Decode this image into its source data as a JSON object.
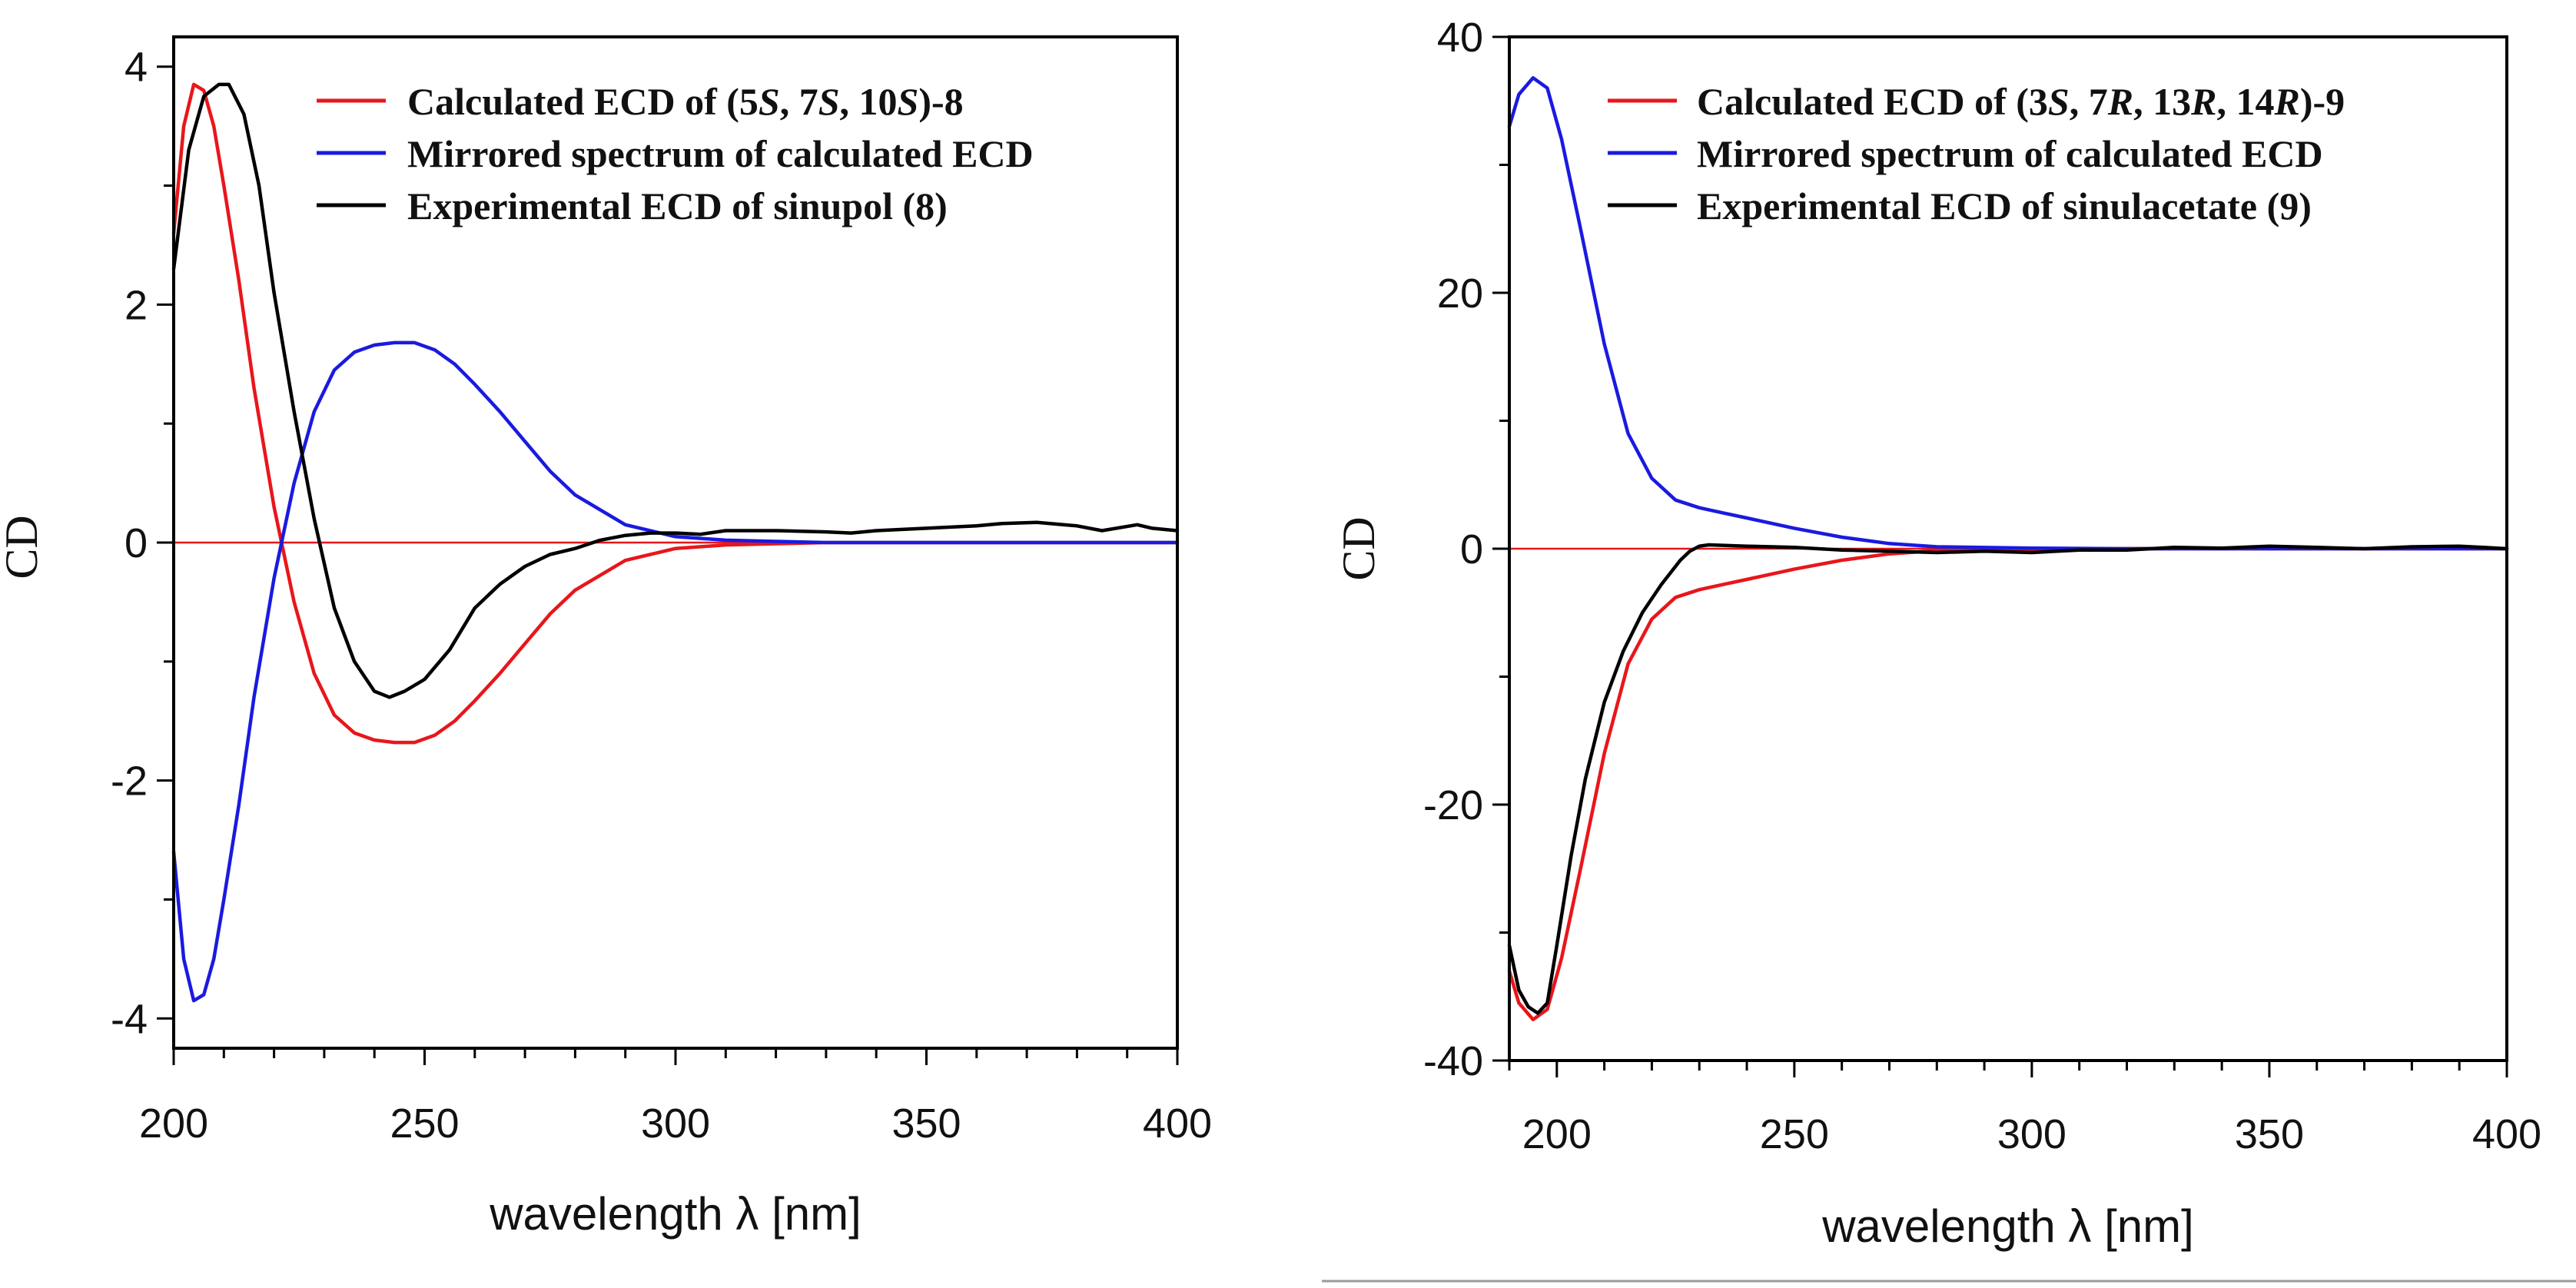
{
  "colors": {
    "calculated": "#e8161b",
    "mirrored": "#1a1ae0",
    "experimental": "#000000",
    "zero_line": "#e8161b"
  },
  "chart_data": [
    {
      "type": "line",
      "xlabel": "wavelength λ [nm]",
      "ylabel": "CD",
      "xlim": [
        200,
        400
      ],
      "ylim": [
        -4.25,
        4.25
      ],
      "xticks": [
        200,
        250,
        300,
        350,
        400
      ],
      "xtick_labels": [
        "200",
        "250",
        "300",
        "350",
        "400"
      ],
      "yticks": [
        -4,
        -2,
        0,
        2,
        4
      ],
      "ytick_labels": [
        "-4",
        "-2",
        "0",
        "2",
        "4"
      ],
      "legend_placement": "top-right",
      "series": [
        {
          "name": "Calculated ECD of (5S, 7S, 10S)-8",
          "legend": {
            "prefix": "Calculated ECD of  (5",
            "parts": [
              [
                "S",
                true
              ],
              [
                ",  7",
                false
              ],
              [
                "S",
                true
              ],
              [
                ",  10",
                false
              ],
              [
                "S",
                true
              ],
              [
                ")-8",
                false
              ]
            ]
          },
          "color": "calculated",
          "x": [
            200,
            202,
            204,
            206,
            208,
            210,
            213,
            216,
            220,
            224,
            228,
            232,
            236,
            240,
            244,
            248,
            252,
            256,
            260,
            265,
            270,
            275,
            280,
            290,
            300,
            310,
            320,
            330,
            340,
            400
          ],
          "y": [
            2.6,
            3.5,
            3.85,
            3.8,
            3.5,
            3.0,
            2.2,
            1.3,
            0.3,
            -0.5,
            -1.1,
            -1.45,
            -1.6,
            -1.66,
            -1.68,
            -1.68,
            -1.62,
            -1.5,
            -1.33,
            -1.1,
            -0.85,
            -0.6,
            -0.4,
            -0.15,
            -0.05,
            -0.02,
            -0.01,
            0,
            0,
            0
          ]
        },
        {
          "name": "Mirrored spectrum of calculated ECD",
          "legend": {
            "prefix": "Mirrored spectrum of calculated ECD",
            "parts": []
          },
          "color": "mirrored",
          "x": [
            200,
            202,
            204,
            206,
            208,
            210,
            213,
            216,
            220,
            224,
            228,
            232,
            236,
            240,
            244,
            248,
            252,
            256,
            260,
            265,
            270,
            275,
            280,
            290,
            300,
            310,
            320,
            330,
            340,
            400
          ],
          "y": [
            -2.6,
            -3.5,
            -3.85,
            -3.8,
            -3.5,
            -3.0,
            -2.2,
            -1.3,
            -0.3,
            0.5,
            1.1,
            1.45,
            1.6,
            1.66,
            1.68,
            1.68,
            1.62,
            1.5,
            1.33,
            1.1,
            0.85,
            0.6,
            0.4,
            0.15,
            0.05,
            0.02,
            0.01,
            0,
            0,
            0
          ]
        },
        {
          "name": "Experimental ECD of sinupol (8)",
          "legend": {
            "prefix": "Experimental ECD of sinupol (8)",
            "parts": []
          },
          "color": "experimental",
          "x": [
            200,
            203,
            206,
            209,
            211,
            214,
            217,
            220,
            224,
            228,
            232,
            236,
            240,
            243,
            246,
            250,
            255,
            260,
            265,
            270,
            275,
            280,
            285,
            290,
            295,
            300,
            305,
            310,
            320,
            330,
            335,
            340,
            350,
            360,
            365,
            372,
            380,
            385,
            392,
            395,
            400
          ],
          "y": [
            2.3,
            3.3,
            3.75,
            3.85,
            3.85,
            3.6,
            3.0,
            2.1,
            1.1,
            0.2,
            -0.55,
            -1.0,
            -1.25,
            -1.3,
            -1.25,
            -1.15,
            -0.9,
            -0.55,
            -0.35,
            -0.2,
            -0.1,
            -0.05,
            0.02,
            0.06,
            0.08,
            0.08,
            0.07,
            0.1,
            0.1,
            0.09,
            0.08,
            0.1,
            0.12,
            0.14,
            0.16,
            0.17,
            0.14,
            0.1,
            0.15,
            0.12,
            0.1
          ]
        }
      ]
    },
    {
      "type": "line",
      "xlabel": "wavelength λ [nm]",
      "ylabel": "CD",
      "xlim": [
        190,
        400
      ],
      "ylim": [
        -40,
        40
      ],
      "xticks": [
        200,
        250,
        300,
        350,
        400
      ],
      "xtick_labels": [
        "200",
        "250",
        "300",
        "350",
        "400"
      ],
      "yticks": [
        -40,
        -20,
        0,
        20,
        40
      ],
      "ytick_labels": [
        "-40",
        "-20",
        "0",
        "20",
        "40"
      ],
      "legend_placement": "top-right",
      "series": [
        {
          "name": "Calculated ECD of (3S, 7R, 13R, 14R)-9",
          "legend": {
            "prefix": "Calculated ECD of  (3",
            "parts": [
              [
                "S",
                true
              ],
              [
                ",  7",
                false
              ],
              [
                "R",
                true
              ],
              [
                ",  13",
                false
              ],
              [
                "R",
                true
              ],
              [
                ",  14",
                false
              ],
              [
                "R",
                true
              ],
              [
                ")-9",
                false
              ]
            ]
          },
          "color": "calculated",
          "x": [
            190,
            192,
            195,
            198,
            201,
            205,
            210,
            215,
            220,
            225,
            230,
            235,
            240,
            250,
            260,
            270,
            280,
            300,
            320,
            400
          ],
          "y": [
            -33,
            -35.5,
            -36.8,
            -36,
            -32,
            -25,
            -16,
            -9,
            -5.5,
            -3.8,
            -3.2,
            -2.8,
            -2.4,
            -1.6,
            -0.9,
            -0.4,
            -0.15,
            -0.05,
            0,
            0
          ]
        },
        {
          "name": "Mirrored spectrum of calculated ECD",
          "legend": {
            "prefix": "Mirrored spectrum of calculated ECD",
            "parts": []
          },
          "color": "mirrored",
          "x": [
            190,
            192,
            195,
            198,
            201,
            205,
            210,
            215,
            220,
            225,
            230,
            235,
            240,
            250,
            260,
            270,
            280,
            300,
            320,
            400
          ],
          "y": [
            33,
            35.5,
            36.8,
            36,
            32,
            25,
            16,
            9,
            5.5,
            3.8,
            3.2,
            2.8,
            2.4,
            1.6,
            0.9,
            0.4,
            0.15,
            0.05,
            0,
            0
          ]
        },
        {
          "name": "Experimental ECD of sinulacetate (9)",
          "legend": {
            "prefix": "Experimental ECD of sinulacetate (9)",
            "parts": []
          },
          "color": "experimental",
          "x": [
            190,
            192,
            194,
            196,
            198,
            200,
            203,
            206,
            210,
            214,
            218,
            222,
            226,
            228,
            230,
            232,
            240,
            250,
            260,
            270,
            280,
            290,
            300,
            310,
            320,
            330,
            340,
            350,
            360,
            370,
            380,
            390,
            395,
            400
          ],
          "y": [
            -31,
            -34.5,
            -35.8,
            -36.3,
            -35.5,
            -31,
            -24,
            -18,
            -12,
            -8,
            -5,
            -2.8,
            -0.9,
            -0.2,
            0.2,
            0.3,
            0.2,
            0.1,
            -0.1,
            -0.2,
            -0.3,
            -0.2,
            -0.3,
            -0.1,
            -0.1,
            0.1,
            0.05,
            0.2,
            0.1,
            0.0,
            0.15,
            0.2,
            0.1,
            0
          ]
        }
      ]
    }
  ]
}
